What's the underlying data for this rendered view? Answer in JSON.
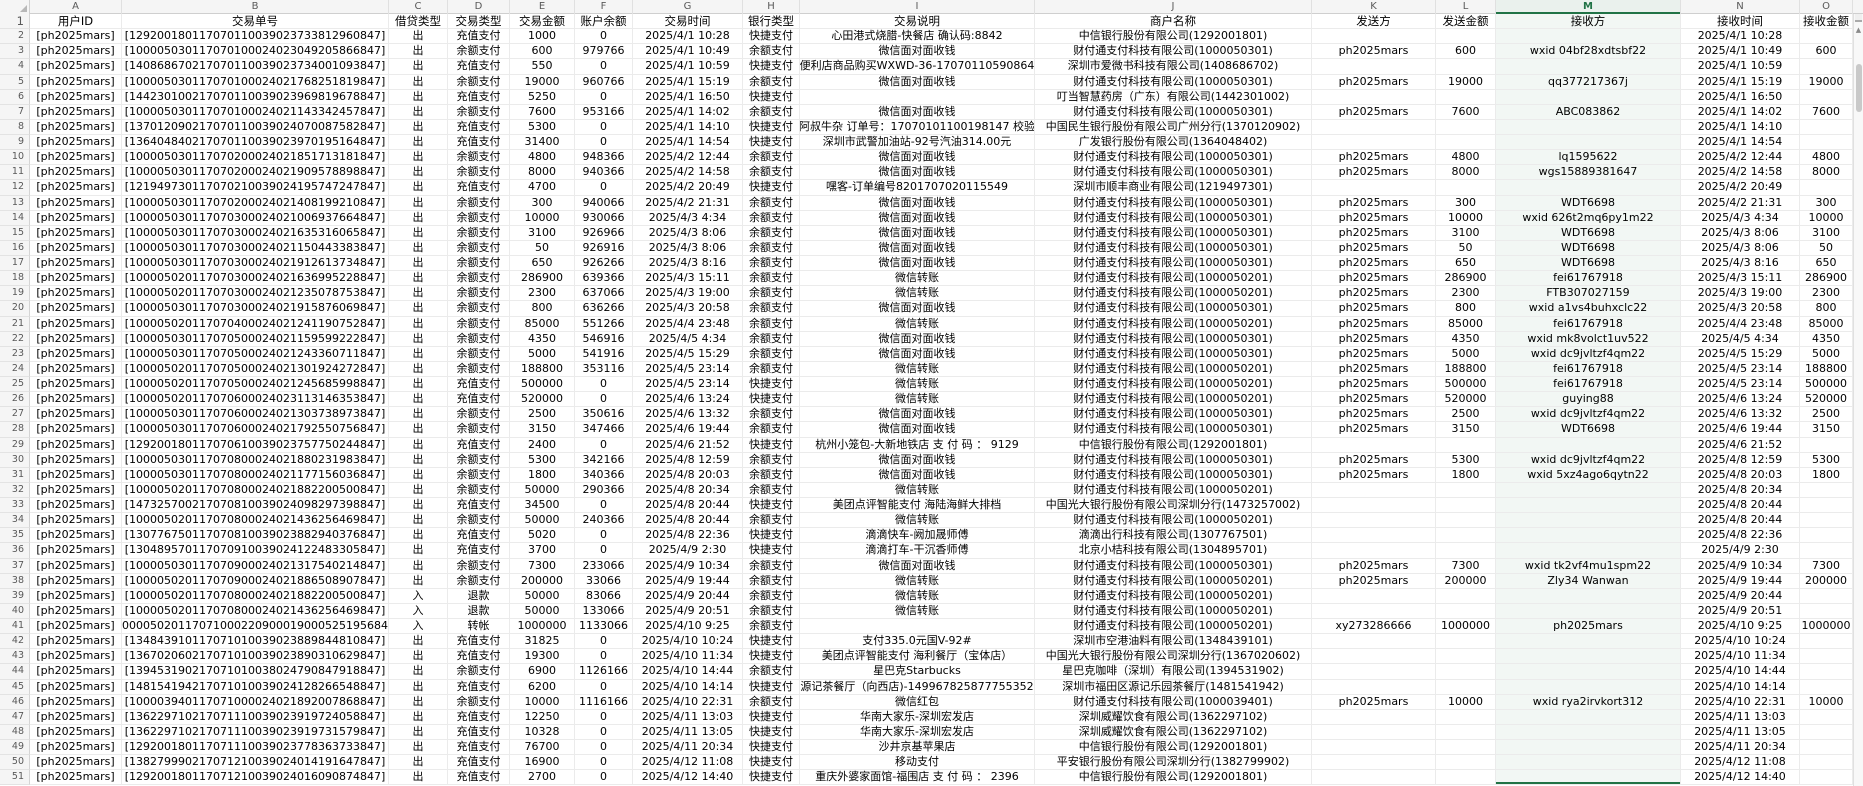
{
  "selection": {
    "selected_column": "M"
  },
  "colors": {
    "accent_green": "#217346",
    "grid_line": "#ebebeb",
    "header_bg": "#f5f5f5",
    "selected_column_tint": "#f2f7f4"
  },
  "icons": {
    "scroll_up": "▲",
    "select_all_corner": "corner-triangle"
  },
  "columns": [
    {
      "letter": "A",
      "label": "用户ID"
    },
    {
      "letter": "B",
      "label": "交易单号"
    },
    {
      "letter": "C",
      "label": "借贷类型"
    },
    {
      "letter": "D",
      "label": "交易类型"
    },
    {
      "letter": "E",
      "label": "交易金额"
    },
    {
      "letter": "F",
      "label": "账户余额"
    },
    {
      "letter": "G",
      "label": "交易时间"
    },
    {
      "letter": "H",
      "label": "银行类型"
    },
    {
      "letter": "I",
      "label": "交易说明"
    },
    {
      "letter": "J",
      "label": "商户名称"
    },
    {
      "letter": "K",
      "label": "发送方"
    },
    {
      "letter": "L",
      "label": "发送金额"
    },
    {
      "letter": "M",
      "label": "接收方"
    },
    {
      "letter": "N",
      "label": "接收时间"
    },
    {
      "letter": "O",
      "label": "接收金额"
    }
  ],
  "rows": [
    [
      "[ph2025mars]",
      "[129200180117070110039023733812960847]",
      "出",
      "充值支付",
      "1000",
      "0",
      "2025/4/1 10:28",
      "快捷支付",
      "心田港式烧腊-快餐店 确认码:8842",
      "中信银行股份有限公司(1292001801)",
      "",
      "",
      "",
      "2025/4/1 10:28",
      ""
    ],
    [
      "[ph2025mars]",
      "[100005030117070100024023049205866847]",
      "出",
      "余额支付",
      "600",
      "979766",
      "2025/4/1 10:49",
      "余额支付",
      "微信面对面收钱",
      "财付通支付科技有限公司(1000050301)",
      "ph2025mars",
      "600",
      "wxid 04bf28xdtsbf22",
      "2025/4/1 10:49",
      "600"
    ],
    [
      "[ph2025mars]",
      "[140868670217070110039023734001093847]",
      "出",
      "充值支付",
      "550",
      "0",
      "2025/4/1 10:59",
      "快捷支付",
      "便利店商品购买WXWD-36-17070110590864",
      "深圳市爱微书科技有限公司(1408686702)",
      "",
      "",
      "",
      "2025/4/1 10:59",
      ""
    ],
    [
      "[ph2025mars]",
      "[100005030117070100024021768251819847]",
      "出",
      "余额支付",
      "19000",
      "960766",
      "2025/4/1 15:19",
      "余额支付",
      "微信面对面收钱",
      "财付通支付科技有限公司(1000050301)",
      "ph2025mars",
      "19000",
      "qq377217367j",
      "2025/4/1 15:19",
      "19000"
    ],
    [
      "[ph2025mars]",
      "[144230100217070110039023969819678847]",
      "出",
      "充值支付",
      "5250",
      "0",
      "2025/4/1 16:50",
      "快捷支付",
      "",
      "叮当智慧药房（广东）有限公司(1442301002)",
      "",
      "",
      "",
      "2025/4/1 16:50",
      ""
    ],
    [
      "[ph2025mars]",
      "[100005030117070100024021143342457847]",
      "出",
      "余额支付",
      "7600",
      "953166",
      "2025/4/1 14:02",
      "余额支付",
      "微信面对面收钱",
      "财付通支付科技有限公司(1000050301)",
      "ph2025mars",
      "7600",
      "ABC083862",
      "2025/4/1 14:02",
      "7600"
    ],
    [
      "[ph2025mars]",
      "[137012090217070110039024070087582847]",
      "出",
      "充值支付",
      "5300",
      "0",
      "2025/4/1 14:10",
      "快捷支付",
      "潮阿叔牛杂 订单号：17070101100198147 校验码",
      "中国民生银行股份有限公司广州分行(1370120902)",
      "",
      "",
      "",
      "2025/4/1 14:10",
      ""
    ],
    [
      "[ph2025mars]",
      "[136404840217070110039023970195164847]",
      "出",
      "充值支付",
      "31400",
      "0",
      "2025/4/1 14:54",
      "快捷支付",
      "深圳市武警加油站-92号汽油314.00元",
      "广发银行股份有限公司(1364048402)",
      "",
      "",
      "",
      "2025/4/1 14:54",
      ""
    ],
    [
      "[ph2025mars]",
      "[100005030117070200024021851713181847]",
      "出",
      "余额支付",
      "4800",
      "948366",
      "2025/4/2 12:44",
      "余额支付",
      "微信面对面收钱",
      "财付通支付科技有限公司(1000050301)",
      "ph2025mars",
      "4800",
      "lq1595622",
      "2025/4/2 12:44",
      "4800"
    ],
    [
      "[ph2025mars]",
      "[100005030117070200024021909578898847]",
      "出",
      "余额支付",
      "8000",
      "940366",
      "2025/4/2 14:58",
      "余额支付",
      "微信面对面收钱",
      "财付通支付科技有限公司(1000050301)",
      "ph2025mars",
      "8000",
      "wgs15889381647",
      "2025/4/2 14:58",
      "8000"
    ],
    [
      "[ph2025mars]",
      "[121949730117070210039024195747247847]",
      "出",
      "充值支付",
      "4700",
      "0",
      "2025/4/2 20:49",
      "快捷支付",
      "嘿客-订单编号8201707020115549",
      "深圳市顺丰商业有限公司(1219497301)",
      "",
      "",
      "",
      "2025/4/2 20:49",
      ""
    ],
    [
      "[ph2025mars]",
      "[100005030117070200024021408199210847]",
      "出",
      "余额支付",
      "300",
      "940066",
      "2025/4/2 21:31",
      "余额支付",
      "微信面对面收钱",
      "财付通支付科技有限公司(1000050301)",
      "ph2025mars",
      "300",
      "WDT6698",
      "2025/4/2 21:31",
      "300"
    ],
    [
      "[ph2025mars]",
      "[100005030117070300024021006937664847]",
      "出",
      "余额支付",
      "10000",
      "930066",
      "2025/4/3 4:34",
      "余额支付",
      "微信面对面收钱",
      "财付通支付科技有限公司(1000050301)",
      "ph2025mars",
      "10000",
      "wxid 626t2mq6py1m22",
      "2025/4/3 4:34",
      "10000"
    ],
    [
      "[ph2025mars]",
      "[100005030117070300024021635316065847]",
      "出",
      "余额支付",
      "3100",
      "926966",
      "2025/4/3 8:06",
      "余额支付",
      "微信面对面收钱",
      "财付通支付科技有限公司(1000050301)",
      "ph2025mars",
      "3100",
      "WDT6698",
      "2025/4/3 8:06",
      "3100"
    ],
    [
      "[ph2025mars]",
      "[100005030117070300024021150443383847]",
      "出",
      "余额支付",
      "50",
      "926916",
      "2025/4/3 8:06",
      "余额支付",
      "微信面对面收钱",
      "财付通支付科技有限公司(1000050301)",
      "ph2025mars",
      "50",
      "WDT6698",
      "2025/4/3 8:06",
      "50"
    ],
    [
      "[ph2025mars]",
      "[100005030117070300024021912613734847]",
      "出",
      "余额支付",
      "650",
      "926266",
      "2025/4/3 8:16",
      "余额支付",
      "微信面对面收钱",
      "财付通支付科技有限公司(1000050301)",
      "ph2025mars",
      "650",
      "WDT6698",
      "2025/4/3 8:16",
      "650"
    ],
    [
      "[ph2025mars]",
      "[100005020117070300024021636995228847]",
      "出",
      "余额支付",
      "286900",
      "639366",
      "2025/4/3 15:11",
      "余额支付",
      "微信转账",
      "财付通支付科技有限公司(1000050201)",
      "ph2025mars",
      "286900",
      "fei61767918",
      "2025/4/3 15:11",
      "286900"
    ],
    [
      "[ph2025mars]",
      "[100005020117070300024021235078753847]",
      "出",
      "余额支付",
      "2300",
      "637066",
      "2025/4/3 19:00",
      "余额支付",
      "微信转账",
      "财付通支付科技有限公司(1000050201)",
      "ph2025mars",
      "2300",
      "FTB307027159",
      "2025/4/3 19:00",
      "2300"
    ],
    [
      "[ph2025mars]",
      "[100005030117070300024021915876069847]",
      "出",
      "余额支付",
      "800",
      "636266",
      "2025/4/3 20:58",
      "余额支付",
      "微信面对面收钱",
      "财付通支付科技有限公司(1000050301)",
      "ph2025mars",
      "800",
      "wxid a1vs4buhxclc22",
      "2025/4/3 20:58",
      "800"
    ],
    [
      "[ph2025mars]",
      "[100005020117070400024021241190752847]",
      "出",
      "余额支付",
      "85000",
      "551266",
      "2025/4/4 23:48",
      "余额支付",
      "微信转账",
      "财付通支付科技有限公司(1000050201)",
      "ph2025mars",
      "85000",
      "fei61767918",
      "2025/4/4 23:48",
      "85000"
    ],
    [
      "[ph2025mars]",
      "[100005030117070500024021159599222847]",
      "出",
      "余额支付",
      "4350",
      "546916",
      "2025/4/5 4:34",
      "余额支付",
      "微信面对面收钱",
      "财付通支付科技有限公司(1000050301)",
      "ph2025mars",
      "4350",
      "wxid mk8volct1uv522",
      "2025/4/5 4:34",
      "4350"
    ],
    [
      "[ph2025mars]",
      "[100005030117070500024021243360711847]",
      "出",
      "余额支付",
      "5000",
      "541916",
      "2025/4/5 15:29",
      "余额支付",
      "微信面对面收钱",
      "财付通支付科技有限公司(1000050301)",
      "ph2025mars",
      "5000",
      "wxid dc9jvltzf4qm22",
      "2025/4/5 15:29",
      "5000"
    ],
    [
      "[ph2025mars]",
      "[100005020117070500024021301924272847]",
      "出",
      "余额支付",
      "188800",
      "353116",
      "2025/4/5 23:14",
      "余额支付",
      "微信转账",
      "财付通支付科技有限公司(1000050201)",
      "ph2025mars",
      "188800",
      "fei61767918",
      "2025/4/5 23:14",
      "188800"
    ],
    [
      "[ph2025mars]",
      "[100005020117070500024021245685998847]",
      "出",
      "充值支付",
      "500000",
      "0",
      "2025/4/5 23:14",
      "快捷支付",
      "微信转账",
      "财付通支付科技有限公司(1000050201)",
      "ph2025mars",
      "500000",
      "fei61767918",
      "2025/4/5 23:14",
      "500000"
    ],
    [
      "[ph2025mars]",
      "[100005020117070600024023113146353847]",
      "出",
      "充值支付",
      "520000",
      "0",
      "2025/4/6 13:24",
      "快捷支付",
      "微信转账",
      "财付通支付科技有限公司(1000050201)",
      "ph2025mars",
      "520000",
      "guying88",
      "2025/4/6 13:24",
      "520000"
    ],
    [
      "[ph2025mars]",
      "[100005030117070600024021303738973847]",
      "出",
      "余额支付",
      "2500",
      "350616",
      "2025/4/6 13:32",
      "余额支付",
      "微信面对面收钱",
      "财付通支付科技有限公司(1000050301)",
      "ph2025mars",
      "2500",
      "wxid dc9jvltzf4qm22",
      "2025/4/6 13:32",
      "2500"
    ],
    [
      "[ph2025mars]",
      "[100005030117070600024021792550756847]",
      "出",
      "余额支付",
      "3150",
      "347466",
      "2025/4/6 19:44",
      "余额支付",
      "微信面对面收钱",
      "财付通支付科技有限公司(1000050301)",
      "ph2025mars",
      "3150",
      "WDT6698",
      "2025/4/6 19:44",
      "3150"
    ],
    [
      "[ph2025mars]",
      "[129200180117070610039023757750244847]",
      "出",
      "充值支付",
      "2400",
      "0",
      "2025/4/6 21:52",
      "快捷支付",
      "杭州小笼包-大新地铁店 支 付 码 ： 9129",
      "中信银行股份有限公司(1292001801)",
      "",
      "",
      "",
      "2025/4/6 21:52",
      ""
    ],
    [
      "[ph2025mars]",
      "[100005030117070800024021880231983847]",
      "出",
      "余额支付",
      "5300",
      "342166",
      "2025/4/8 12:59",
      "余额支付",
      "微信面对面收钱",
      "财付通支付科技有限公司(1000050301)",
      "ph2025mars",
      "5300",
      "wxid dc9jvltzf4qm22",
      "2025/4/8 12:59",
      "5300"
    ],
    [
      "[ph2025mars]",
      "[100005030117070800024021177156036847]",
      "出",
      "余额支付",
      "1800",
      "340366",
      "2025/4/8 20:03",
      "余额支付",
      "微信面对面收钱",
      "财付通支付科技有限公司(1000050301)",
      "ph2025mars",
      "1800",
      "wxid 5xz4ago6qytn22",
      "2025/4/8 20:03",
      "1800"
    ],
    [
      "[ph2025mars]",
      "[100005020117070800024021882200500847]",
      "出",
      "余额支付",
      "50000",
      "290366",
      "2025/4/8 20:34",
      "余额支付",
      "微信转账",
      "财付通支付科技有限公司(1000050201)",
      "",
      "",
      "",
      "2025/4/8 20:34",
      ""
    ],
    [
      "[ph2025mars]",
      "[147325700217070810039024098297398847]",
      "出",
      "充值支付",
      "34500",
      "0",
      "2025/4/8 20:44",
      "快捷支付",
      "美团点评智能支付 海陆海鲜大排档",
      "中国光大银行股份有限公司深圳分行(1473257002)",
      "",
      "",
      "",
      "2025/4/8 20:44",
      ""
    ],
    [
      "[ph2025mars]",
      "[100005020117070800024021436256469847]",
      "出",
      "余额支付",
      "50000",
      "240366",
      "2025/4/8 20:44",
      "余额支付",
      "微信转账",
      "财付通支付科技有限公司(1000050201)",
      "",
      "",
      "",
      "2025/4/8 20:44",
      ""
    ],
    [
      "[ph2025mars]",
      "[130776750117070810039023882940376847]",
      "出",
      "充值支付",
      "5020",
      "0",
      "2025/4/8 22:36",
      "快捷支付",
      "滴滴快车-阙加晟师傅",
      "滴滴出行科技有限公司(1307767501)",
      "",
      "",
      "",
      "2025/4/8 22:36",
      ""
    ],
    [
      "[ph2025mars]",
      "[130489570117070910039024122483305847]",
      "出",
      "充值支付",
      "3700",
      "0",
      "2025/4/9 2:30",
      "快捷支付",
      "滴滴打车-干沉香师傅",
      "北京小桔科技有限公司(1304895701)",
      "",
      "",
      "",
      "2025/4/9 2:30",
      ""
    ],
    [
      "[ph2025mars]",
      "[100005030117070900024021317540214847]",
      "出",
      "余额支付",
      "7300",
      "233066",
      "2025/4/9 10:34",
      "余额支付",
      "微信面对面收钱",
      "财付通支付科技有限公司(1000050301)",
      "ph2025mars",
      "7300",
      "wxid tk2vf4mu1spm22",
      "2025/4/9 10:34",
      "7300"
    ],
    [
      "[ph2025mars]",
      "[100005020117070900024021886508907847]",
      "出",
      "余额支付",
      "200000",
      "33066",
      "2025/4/9 19:44",
      "余额支付",
      "微信转账",
      "财付通支付科技有限公司(1000050201)",
      "ph2025mars",
      "200000",
      "Zly34 Wanwan",
      "2025/4/9 19:44",
      "200000"
    ],
    [
      "[ph2025mars]",
      "[100005020117070800024021882200500847]",
      "入",
      "退款",
      "50000",
      "83066",
      "2025/4/9 20:44",
      "余额支付",
      "微信转账",
      "财付通支付科技有限公司(1000050201)",
      "",
      "",
      "",
      "2025/4/9 20:44",
      ""
    ],
    [
      "[ph2025mars]",
      "[100005020117070800024021436256469847]",
      "入",
      "退款",
      "50000",
      "133066",
      "2025/4/9 20:51",
      "余额支付",
      "微信转账",
      "财付通支付科技有限公司(1000050201)",
      "",
      "",
      "",
      "2025/4/9 20:51",
      ""
    ],
    [
      "[ph2025mars]",
      "[1000050201170710002209000190005251956847]",
      "入",
      "转帐",
      "1000000",
      "1133066",
      "2025/4/10 9:25",
      "余额支付",
      "",
      "财付通支付科技有限公司(1000050201)",
      "xy273286666",
      "1000000",
      "ph2025mars",
      "2025/4/10 9:25",
      "1000000"
    ],
    [
      "[ph2025mars]",
      "[134843910117071010039023889844810847]",
      "出",
      "充值支付",
      "31825",
      "0",
      "2025/4/10 10:24",
      "快捷支付",
      "支付335.0元国V-92#",
      "深圳市空港油料有限公司(1348439101)",
      "",
      "",
      "",
      "2025/4/10 10:24",
      ""
    ],
    [
      "[ph2025mars]",
      "[136702060217071010039023890310629847]",
      "出",
      "充值支付",
      "19300",
      "0",
      "2025/4/10 11:34",
      "快捷支付",
      "美团点评智能支付 海利餐厅（宝体店）",
      "中国光大银行股份有限公司深圳分行(1367020602)",
      "",
      "",
      "",
      "2025/4/10 11:34",
      ""
    ],
    [
      "[ph2025mars]",
      "[139453190217071010038024790847918847]",
      "出",
      "余额支付",
      "6900",
      "1126166",
      "2025/4/10 14:44",
      "余额支付",
      "星巴克Starbucks",
      "星巴克咖啡（深圳）有限公司(1394531902)",
      "",
      "",
      "",
      "2025/4/10 14:44",
      ""
    ],
    [
      "[ph2025mars]",
      "[148154194217071010039024128266548847]",
      "出",
      "充值支付",
      "6200",
      "0",
      "2025/4/10 14:14",
      "快捷支付",
      "源记茶餐厅（向西店)-149967825877755352",
      "深圳市福田区源记乐园茶餐厅(1481541942)",
      "",
      "",
      "",
      "2025/4/10 14:14",
      ""
    ],
    [
      "[ph2025mars]",
      "[100003940117071000024021892007868847]",
      "出",
      "余额支付",
      "10000",
      "1116166",
      "2025/4/10 22:31",
      "余额支付",
      "微信红包",
      "财付通支付科技有限公司(1000039401)",
      "ph2025mars",
      "10000",
      "wxid rya2irvkort312",
      "2025/4/10 22:31",
      "10000"
    ],
    [
      "[ph2025mars]",
      "[136229710217071110039023919724058847]",
      "出",
      "充值支付",
      "12250",
      "0",
      "2025/4/11 13:03",
      "快捷支付",
      "华南大家乐-深圳宏发店",
      "深圳威耀饮食有限公司(1362297102)",
      "",
      "",
      "",
      "2025/4/11 13:03",
      ""
    ],
    [
      "[ph2025mars]",
      "[136229710217071110039023919731579847]",
      "出",
      "充值支付",
      "10328",
      "0",
      "2025/4/11 13:05",
      "快捷支付",
      "华南大家乐-深圳宏发店",
      "深圳威耀饮食有限公司(1362297102)",
      "",
      "",
      "",
      "2025/4/11 13:05",
      ""
    ],
    [
      "[ph2025mars]",
      "[129200180117071110039023778363733847]",
      "出",
      "充值支付",
      "76700",
      "0",
      "2025/4/11 20:34",
      "快捷支付",
      "沙井京基苹果店",
      "中信银行股份有限公司(1292001801)",
      "",
      "",
      "",
      "2025/4/11 20:34",
      ""
    ],
    [
      "[ph2025mars]",
      "[138279990217071210039024014191647847]",
      "出",
      "充值支付",
      "16900",
      "0",
      "2025/4/12 11:08",
      "快捷支付",
      "移动支付",
      "平安银行股份有限公司深圳分行(1382799902)",
      "",
      "",
      "",
      "2025/4/12 11:08",
      ""
    ],
    [
      "[ph2025mars]",
      "[129200180117071210039024016090874847]",
      "出",
      "充值支付",
      "2700",
      "0",
      "2025/4/12 14:40",
      "快捷支付",
      "重庆外婆家面馆-福围店 支 付 码 ： 2396",
      "中信银行股份有限公司(1292001801)",
      "",
      "",
      "",
      "2025/4/12 14:40",
      ""
    ]
  ]
}
